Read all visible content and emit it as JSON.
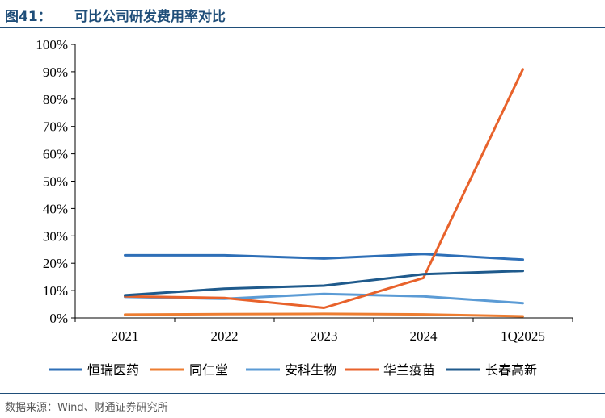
{
  "header": {
    "figure_label": "图41：",
    "title": "可比公司研发费用率对比"
  },
  "source": "数据来源：Wind、财通证券研究所",
  "chart_data": {
    "type": "line",
    "categories": [
      "2021",
      "2022",
      "2023",
      "2024",
      "1Q2025"
    ],
    "ylim": [
      0,
      100
    ],
    "y_ticks": [
      "0%",
      "10%",
      "20%",
      "30%",
      "40%",
      "50%",
      "60%",
      "70%",
      "80%",
      "90%",
      "100%"
    ],
    "grid": false,
    "legend_position": "bottom",
    "series": [
      {
        "name": "恒瑞医药",
        "color": "#2e6fb7",
        "values": [
          22.9,
          22.9,
          21.7,
          23.4,
          21.3
        ]
      },
      {
        "name": "同仁堂",
        "color": "#ed7d31",
        "values": [
          1.2,
          1.4,
          1.5,
          1.3,
          0.6
        ]
      },
      {
        "name": "安科生物",
        "color": "#5b9bd5",
        "values": [
          7.7,
          7.0,
          8.8,
          7.9,
          5.4
        ]
      },
      {
        "name": "华兰疫苗",
        "color": "#e8622b",
        "values": [
          7.9,
          7.3,
          3.7,
          14.6,
          90.9
        ]
      },
      {
        "name": "长春高新",
        "color": "#1f5a8c",
        "values": [
          8.3,
          10.7,
          11.8,
          16.0,
          17.2
        ]
      }
    ]
  }
}
